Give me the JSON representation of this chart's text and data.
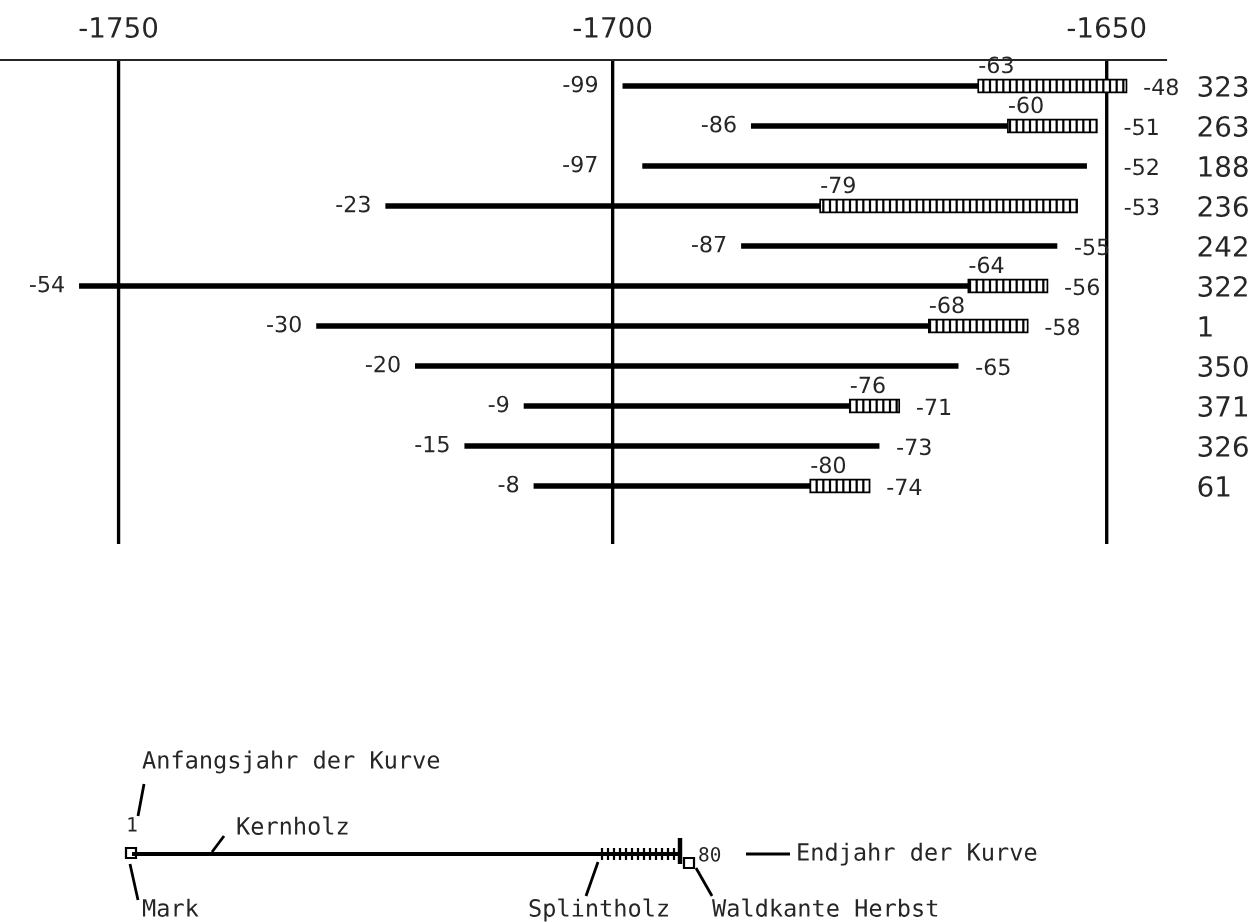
{
  "chart_data": {
    "type": "bar",
    "orientation": "horizontal",
    "categories": [
      "323",
      "263",
      "188",
      "236",
      "242",
      "322",
      "1",
      "350",
      "371",
      "326",
      "61"
    ],
    "series": [
      {
        "color": "#000000",
        "base": [
          -1699,
          -1686,
          -1697,
          -1723,
          -1687,
          -1754,
          -1730,
          -1720,
          -1709,
          -1715,
          -1708
        ],
        "values": [
          36,
          26,
          45,
          44,
          32,
          90,
          62,
          55,
          33,
          42,
          28
        ]
      },
      {
        "color": "#000000",
        "base": [
          -1663,
          -1660,
          null,
          -1679,
          null,
          -1664,
          -1668,
          null,
          -1676,
          null,
          -1680
        ],
        "values": [
          15,
          9,
          null,
          26,
          null,
          8,
          10,
          null,
          5,
          null,
          6
        ]
      }
    ],
    "xlim": [
      -1762,
      -1644
    ],
    "xticks": [
      {
        "value": -1750,
        "label": "-1750"
      },
      {
        "value": -1700,
        "label": "-1700"
      },
      {
        "value": -1650,
        "label": "-1650"
      }
    ],
    "grid": "x",
    "annotations": [
      {
        "text": "-99",
        "x": -1699,
        "y": "323"
      },
      {
        "text": "-63",
        "x": -1663,
        "y": "323"
      },
      {
        "text": "-48",
        "x": -1648,
        "y": "323"
      },
      {
        "text": "-86",
        "x": -1686,
        "y": "263"
      },
      {
        "text": "-60",
        "x": -1660,
        "y": "263"
      },
      {
        "text": "-51",
        "x": -1651,
        "y": "263"
      },
      {
        "text": "-97",
        "x": -1697,
        "y": "188"
      },
      {
        "text": "-52",
        "x": -1652,
        "y": "188"
      },
      {
        "text": "-23",
        "x": -1723,
        "y": "236"
      },
      {
        "text": "-79",
        "x": -1679,
        "y": "236"
      },
      {
        "text": "-53",
        "x": -1653,
        "y": "236"
      },
      {
        "text": "-87",
        "x": -1687,
        "y": "242"
      },
      {
        "text": "-55",
        "x": -1655,
        "y": "242"
      },
      {
        "text": "-54",
        "x": -1754,
        "y": "322"
      },
      {
        "text": "-64",
        "x": -1664,
        "y": "322"
      },
      {
        "text": "-56",
        "x": -1656,
        "y": "322"
      },
      {
        "text": "-30",
        "x": -1730,
        "y": "1"
      },
      {
        "text": "-68",
        "x": -1668,
        "y": "1"
      },
      {
        "text": "-58",
        "x": -1658,
        "y": "1"
      },
      {
        "text": "-20",
        "x": -1720,
        "y": "350"
      },
      {
        "text": "-65",
        "x": -1665,
        "y": "350"
      },
      {
        "text": "-9",
        "x": -1709,
        "y": "371"
      },
      {
        "text": "-76",
        "x": -1676,
        "y": "371"
      },
      {
        "text": "-71",
        "x": -1671,
        "y": "371"
      },
      {
        "text": "-15",
        "x": -1715,
        "y": "326"
      },
      {
        "text": "-73",
        "x": -1673,
        "y": "326"
      },
      {
        "text": "-8",
        "x": -1708,
        "y": "61"
      },
      {
        "text": "-80",
        "x": -1680,
        "y": "61"
      },
      {
        "text": "-74",
        "x": -1674,
        "y": "61"
      },
      "Anfangsjahr der Kurve",
      "Kernholz",
      "1",
      "80",
      "Endjahr der Kurve",
      "Mark",
      "Splintholz",
      "Waldkante Herbst"
    ]
  }
}
